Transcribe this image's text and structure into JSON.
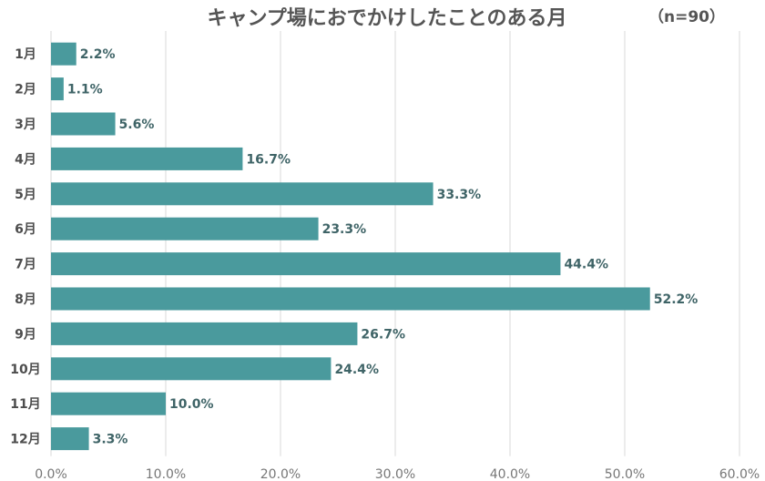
{
  "chart_data": {
    "type": "bar",
    "orientation": "horizontal",
    "title": "キャンプ場におでかけしたことのある月",
    "sample_size": "（n=90）",
    "categories": [
      "1月",
      "2月",
      "3月",
      "4月",
      "5月",
      "6月",
      "7月",
      "8月",
      "9月",
      "10月",
      "11月",
      "12月"
    ],
    "values": [
      2.2,
      1.1,
      5.6,
      16.7,
      33.3,
      23.3,
      44.4,
      52.2,
      26.7,
      24.4,
      10.0,
      3.3
    ],
    "data_labels": [
      "2.2%",
      "1.1%",
      "5.6%",
      "16.7%",
      "33.3%",
      "23.3%",
      "44.4%",
      "52.2%",
      "26.7%",
      "24.4%",
      "10.0%",
      "3.3%"
    ],
    "x_ticks": [
      "0.0%",
      "10.0%",
      "20.0%",
      "30.0%",
      "40.0%",
      "50.0%",
      "60.0%"
    ],
    "xlim": [
      0,
      60
    ],
    "grid": true,
    "legend": "none",
    "colors": {
      "bar": "#4a9a9d",
      "label": "#3f6467",
      "category_text": "#4d4d4d",
      "tick_text": "#777777",
      "grid": "#d9d9d9",
      "title_text": "#555555"
    }
  }
}
